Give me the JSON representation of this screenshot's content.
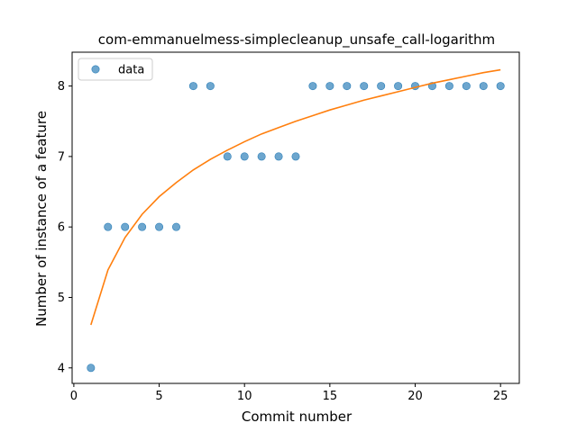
{
  "chart_data": {
    "type": "scatter",
    "title": "com-emmanuelmess-simplecleanup_unsafe_call-logarithm",
    "xlabel": "Commit number",
    "ylabel": "Number of instance of a feature",
    "xlim": [
      -0.1,
      26.1
    ],
    "ylim": [
      3.78,
      8.48
    ],
    "xticks": [
      0,
      5,
      10,
      15,
      20,
      25
    ],
    "yticks": [
      4,
      5,
      6,
      7,
      8
    ],
    "grid": false,
    "legend_placement": "top-left",
    "series": [
      {
        "name": "data",
        "kind": "points",
        "color": "#1f77b4",
        "x": [
          1,
          2,
          3,
          4,
          5,
          6,
          7,
          8,
          9,
          10,
          11,
          12,
          13,
          14,
          15,
          16,
          17,
          18,
          19,
          20,
          21,
          22,
          23,
          24,
          25
        ],
        "y": [
          4,
          6,
          6,
          6,
          6,
          6,
          8,
          8,
          7,
          7,
          7,
          7,
          7,
          8,
          8,
          8,
          8,
          8,
          8,
          8,
          8,
          8,
          8,
          8,
          8
        ]
      },
      {
        "kind": "line",
        "color": "#ff7f0e",
        "x": [
          1,
          2,
          3,
          4,
          5,
          6,
          7,
          8,
          9,
          10,
          11,
          12,
          13,
          14,
          15,
          16,
          17,
          18,
          19,
          20,
          21,
          22,
          23,
          24,
          25
        ],
        "y": [
          4.61,
          5.39,
          5.85,
          6.18,
          6.43,
          6.63,
          6.81,
          6.96,
          7.09,
          7.21,
          7.32,
          7.41,
          7.5,
          7.58,
          7.66,
          7.73,
          7.8,
          7.86,
          7.92,
          7.98,
          8.04,
          8.09,
          8.14,
          8.19,
          8.23
        ]
      }
    ]
  }
}
